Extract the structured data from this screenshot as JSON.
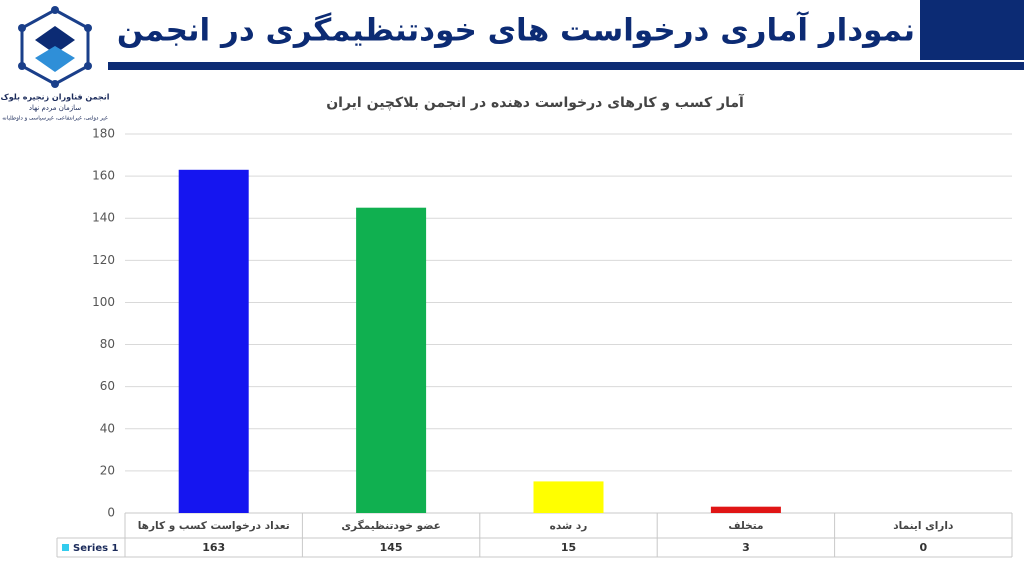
{
  "header": {
    "title": "نمودار آماری درخواست های خودتنظیمگری در انجمن"
  },
  "logo": {
    "lines": [
      "انجمن فناوران زنجیره بلوک",
      "سازمان مردم نهاد",
      "غیر دولتی، غیرانتفاعی، غیرسیاسی و داوطلبانه"
    ]
  },
  "chart_data": {
    "type": "bar",
    "title": "آمار کسب و کارهای درخواست دهنده در انجمن بلاکچین ایران",
    "categories": [
      "تعداد درخواست کسب و کارها",
      "عضو خودتنظیمگری",
      "رد شده",
      "متخلف",
      "دارای اینماد"
    ],
    "series": [
      {
        "name": "Series 1",
        "legend_color": "#33ccee",
        "colors": [
          "#1515f0",
          "#10b050",
          "#ffff00",
          "#e01515",
          "#7030a0"
        ],
        "values": [
          163,
          145,
          15,
          3,
          0
        ]
      }
    ],
    "ylim": [
      0,
      180
    ],
    "yticks": [
      0,
      20,
      40,
      60,
      80,
      100,
      120,
      140,
      160,
      180
    ],
    "grid": true,
    "data_table": true
  }
}
